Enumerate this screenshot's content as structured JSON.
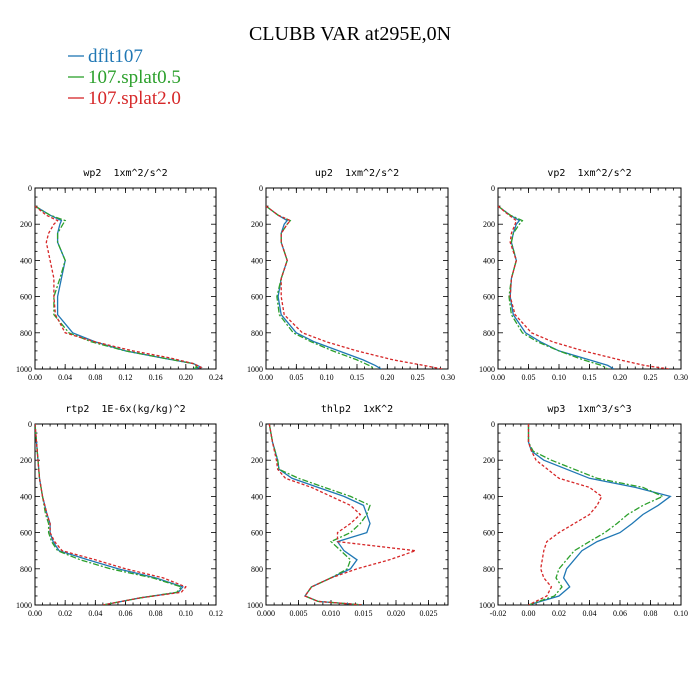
{
  "title": "CLUBB VAR at295E,0N",
  "colors": {
    "dflt107": "#1f77b4",
    "107.splat0.5": "#2ca02c",
    "107.splat2.0": "#d62728"
  },
  "legend": [
    {
      "label": "dflt107",
      "color": "#1f77b4",
      "dash": "none"
    },
    {
      "label": "107.splat0.5",
      "color": "#2ca02c",
      "dash": "6,2,2,2"
    },
    {
      "label": "107.splat2.0",
      "color": "#d62728",
      "dash": "3,2"
    }
  ],
  "chart_data": [
    {
      "type": "line",
      "title": "wp2  1xm^2/s^2",
      "xlim": [
        0,
        0.24
      ],
      "ylim": [
        1000,
        0
      ],
      "xticks": [
        "0.00",
        "0.04",
        "0.08",
        "0.12",
        "0.16",
        "0.20",
        "0.24"
      ],
      "yticks": [
        "0",
        "200",
        "400",
        "600",
        "800",
        "1000"
      ],
      "y": [
        100,
        150,
        180,
        200,
        250,
        300,
        400,
        500,
        600,
        700,
        800,
        850,
        900,
        940,
        970,
        990,
        1000
      ],
      "series": [
        {
          "name": "dflt107",
          "values": [
            0.0,
            0.02,
            0.035,
            0.033,
            0.03,
            0.03,
            0.04,
            0.035,
            0.03,
            0.03,
            0.05,
            0.08,
            0.12,
            0.17,
            0.21,
            0.22,
            0.21
          ]
        },
        {
          "name": "107.splat0.5",
          "values": [
            0.0,
            0.02,
            0.04,
            0.037,
            0.03,
            0.03,
            0.04,
            0.033,
            0.025,
            0.025,
            0.045,
            0.075,
            0.12,
            0.17,
            0.21,
            0.215,
            0.21
          ]
        },
        {
          "name": "107.splat2.0",
          "values": [
            0.0,
            0.015,
            0.03,
            0.025,
            0.018,
            0.015,
            0.02,
            0.025,
            0.025,
            0.027,
            0.04,
            0.08,
            0.13,
            0.18,
            0.21,
            0.22,
            0.215
          ]
        }
      ]
    },
    {
      "type": "line",
      "title": "up2  1xm^2/s^2",
      "xlim": [
        0,
        0.3
      ],
      "ylim": [
        1000,
        0
      ],
      "xticks": [
        "0.00",
        "0.05",
        "0.10",
        "0.15",
        "0.20",
        "0.25",
        "0.30"
      ],
      "yticks": [
        "0",
        "200",
        "400",
        "600",
        "800",
        "1000"
      ],
      "y": [
        100,
        150,
        180,
        200,
        250,
        300,
        400,
        500,
        600,
        700,
        800,
        850,
        900,
        950,
        980,
        1000
      ],
      "series": [
        {
          "name": "dflt107",
          "values": [
            0.0,
            0.02,
            0.035,
            0.03,
            0.025,
            0.025,
            0.035,
            0.025,
            0.02,
            0.025,
            0.05,
            0.08,
            0.12,
            0.16,
            0.18,
            0.19
          ]
        },
        {
          "name": "107.splat0.5",
          "values": [
            0.0,
            0.02,
            0.04,
            0.035,
            0.025,
            0.025,
            0.035,
            0.025,
            0.018,
            0.022,
            0.045,
            0.075,
            0.11,
            0.15,
            0.17,
            0.18
          ]
        },
        {
          "name": "107.splat2.0",
          "values": [
            0.0,
            0.02,
            0.04,
            0.035,
            0.025,
            0.025,
            0.035,
            0.025,
            0.025,
            0.03,
            0.06,
            0.1,
            0.15,
            0.21,
            0.26,
            0.29
          ]
        }
      ]
    },
    {
      "type": "line",
      "title": "vp2  1xm^2/s^2",
      "xlim": [
        0,
        0.3
      ],
      "ylim": [
        1000,
        0
      ],
      "xticks": [
        "0.00",
        "0.05",
        "0.10",
        "0.15",
        "0.20",
        "0.25",
        "0.30"
      ],
      "yticks": [
        "0",
        "200",
        "400",
        "600",
        "800",
        "1000"
      ],
      "y": [
        100,
        150,
        180,
        200,
        250,
        300,
        400,
        500,
        600,
        700,
        800,
        850,
        900,
        950,
        980,
        1000
      ],
      "series": [
        {
          "name": "dflt107",
          "values": [
            0.0,
            0.02,
            0.035,
            0.03,
            0.025,
            0.022,
            0.03,
            0.022,
            0.02,
            0.025,
            0.045,
            0.07,
            0.1,
            0.15,
            0.18,
            0.19
          ]
        },
        {
          "name": "107.splat0.5",
          "values": [
            0.0,
            0.02,
            0.04,
            0.035,
            0.025,
            0.022,
            0.03,
            0.022,
            0.018,
            0.022,
            0.04,
            0.065,
            0.1,
            0.14,
            0.17,
            0.18
          ]
        },
        {
          "name": "107.splat2.0",
          "values": [
            0.0,
            0.018,
            0.03,
            0.028,
            0.022,
            0.02,
            0.03,
            0.022,
            0.02,
            0.028,
            0.055,
            0.09,
            0.14,
            0.2,
            0.24,
            0.28
          ]
        }
      ]
    },
    {
      "type": "line",
      "title": "rtp2  1E-6x(kg/kg)^2",
      "xlim": [
        0,
        0.12
      ],
      "ylim": [
        1000,
        0
      ],
      "xticks": [
        "0.00",
        "0.02",
        "0.04",
        "0.06",
        "0.08",
        "0.10",
        "0.12"
      ],
      "yticks": [
        "0",
        "200",
        "400",
        "600",
        "800",
        "1000"
      ],
      "y": [
        0,
        300,
        400,
        500,
        550,
        600,
        650,
        700,
        750,
        800,
        850,
        900,
        930,
        960,
        1000
      ],
      "series": [
        {
          "name": "dflt107",
          "values": [
            0.0,
            0.003,
            0.005,
            0.008,
            0.01,
            0.01,
            0.012,
            0.016,
            0.035,
            0.055,
            0.08,
            0.098,
            0.095,
            0.07,
            0.045
          ]
        },
        {
          "name": "107.splat0.5",
          "values": [
            0.0,
            0.003,
            0.005,
            0.007,
            0.009,
            0.009,
            0.011,
            0.015,
            0.03,
            0.05,
            0.078,
            0.097,
            0.094,
            0.07,
            0.045
          ]
        },
        {
          "name": "107.splat2.0",
          "values": [
            0.0,
            0.003,
            0.005,
            0.008,
            0.01,
            0.01,
            0.013,
            0.018,
            0.04,
            0.06,
            0.085,
            0.1,
            0.097,
            0.07,
            0.045
          ]
        }
      ]
    },
    {
      "type": "line",
      "title": "thlp2  1xK^2",
      "xlim": [
        0,
        0.028
      ],
      "ylim": [
        1000,
        0
      ],
      "xticks": [
        "0.000",
        "0.005",
        "0.010",
        "0.015",
        "0.020",
        "0.025"
      ],
      "yticks": [
        "0",
        "200",
        "400",
        "600",
        "800",
        "1000"
      ],
      "y": [
        0,
        100,
        200,
        250,
        300,
        350,
        400,
        450,
        500,
        550,
        600,
        650,
        700,
        750,
        800,
        850,
        900,
        950,
        980,
        1000
      ],
      "series": [
        {
          "name": "dflt107",
          "values": [
            0.0005,
            0.001,
            0.0018,
            0.002,
            0.004,
            0.008,
            0.012,
            0.015,
            0.0155,
            0.016,
            0.0155,
            0.011,
            0.012,
            0.014,
            0.013,
            0.01,
            0.007,
            0.006,
            0.008,
            0.015
          ]
        },
        {
          "name": "107.splat0.5",
          "values": [
            0.0005,
            0.001,
            0.0018,
            0.002,
            0.005,
            0.009,
            0.013,
            0.016,
            0.0155,
            0.0145,
            0.013,
            0.01,
            0.0115,
            0.013,
            0.0125,
            0.01,
            0.007,
            0.006,
            0.008,
            0.015
          ]
        },
        {
          "name": "107.splat2.0",
          "values": [
            0.0005,
            0.001,
            0.0016,
            0.0018,
            0.003,
            0.007,
            0.01,
            0.013,
            0.0145,
            0.013,
            0.011,
            0.011,
            0.023,
            0.019,
            0.014,
            0.01,
            0.007,
            0.006,
            0.008,
            0.015
          ]
        }
      ]
    },
    {
      "type": "line",
      "title": "wp3  1xm^3/s^3",
      "xlim": [
        -0.02,
        0.1
      ],
      "ylim": [
        1000,
        0
      ],
      "xticks": [
        "-0.02",
        "0.00",
        "0.02",
        "0.04",
        "0.06",
        "0.08",
        "0.10"
      ],
      "yticks": [
        "0",
        "200",
        "400",
        "600",
        "800",
        "1000"
      ],
      "y": [
        0,
        100,
        150,
        200,
        300,
        350,
        400,
        450,
        500,
        550,
        600,
        650,
        700,
        800,
        850,
        900,
        950,
        1000
      ],
      "series": [
        {
          "name": "dflt107",
          "values": [
            0.0,
            0.0,
            0.002,
            0.01,
            0.04,
            0.07,
            0.093,
            0.085,
            0.075,
            0.068,
            0.06,
            0.045,
            0.035,
            0.025,
            0.023,
            0.027,
            0.02,
            0.0
          ]
        },
        {
          "name": "107.splat0.5",
          "values": [
            0.0,
            0.0,
            0.003,
            0.015,
            0.045,
            0.075,
            0.088,
            0.075,
            0.065,
            0.058,
            0.05,
            0.04,
            0.03,
            0.02,
            0.018,
            0.022,
            0.017,
            0.0
          ]
        },
        {
          "name": "107.splat2.0",
          "values": [
            0.0,
            0.0,
            0.002,
            0.005,
            0.02,
            0.04,
            0.048,
            0.045,
            0.04,
            0.03,
            0.02,
            0.012,
            0.01,
            0.008,
            0.01,
            0.015,
            0.012,
            0.0
          ]
        }
      ]
    }
  ]
}
